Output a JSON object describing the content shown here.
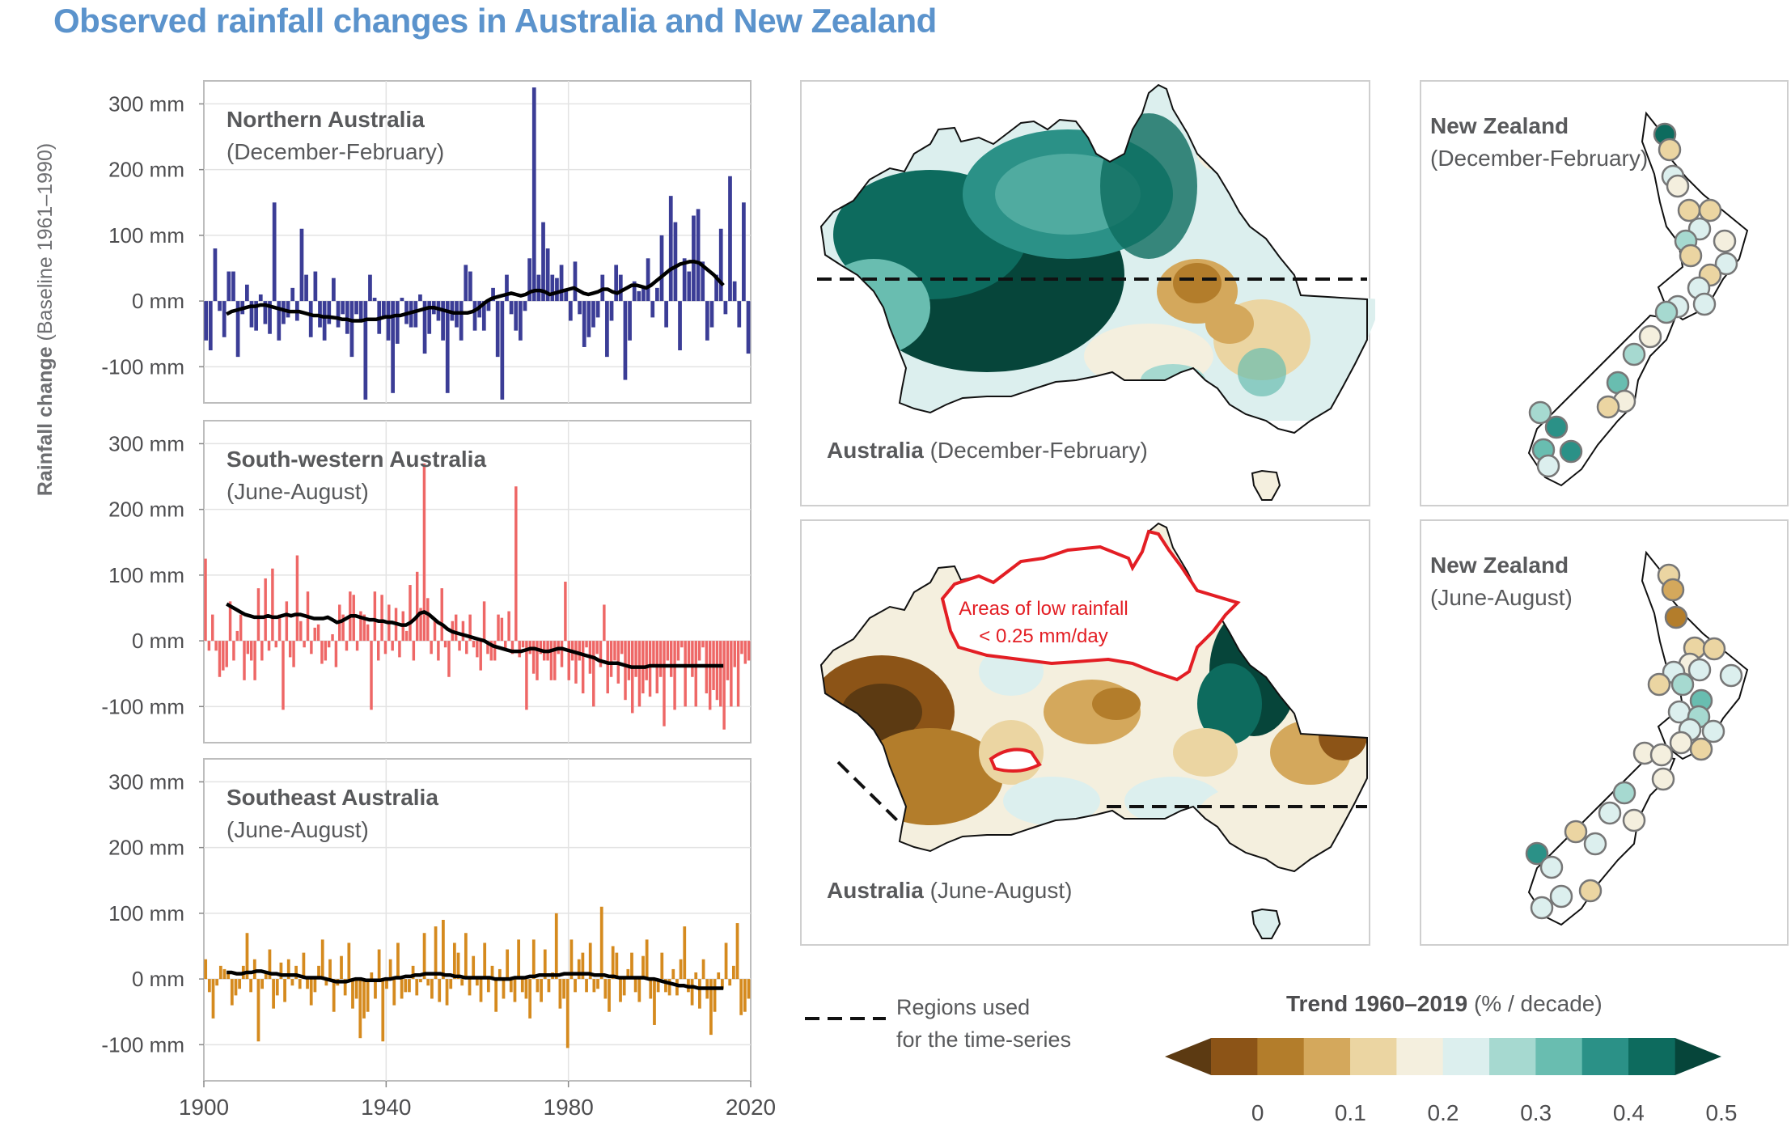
{
  "title": "Observed rainfall changes in Australia and New Zealand",
  "ylabel_bold": "Rainfall change",
  "ylabel_rest": " (Baseline 1961–1990)",
  "colors": {
    "northern": "#3b3d96",
    "southwestern": "#ee6766",
    "southeast": "#d58a1e",
    "smooth": "#000000",
    "title": "#5b93cc",
    "low_rain_outline": "#e31e24"
  },
  "panels": [
    {
      "name": "Northern Australia",
      "season": "(December-February)"
    },
    {
      "name": "South-western Australia",
      "season": "(June-August)"
    },
    {
      "name": "Southeast Australia",
      "season": "(June-August)"
    }
  ],
  "ytick_labels": [
    "300 mm",
    "200 mm",
    "100 mm",
    "0 mm",
    "-100 mm"
  ],
  "xtick_labels": [
    "1900",
    "1940",
    "1980",
    "2020"
  ],
  "chart_data": [
    {
      "type": "bar",
      "title": "Northern Australia (December-February)",
      "ylim": [
        -155,
        335
      ],
      "xlim": [
        1900,
        2020
      ],
      "grid": true,
      "x_start": 1900,
      "values": [
        -60,
        -75,
        80,
        -15,
        -55,
        45,
        45,
        -85,
        -20,
        25,
        -40,
        -45,
        10,
        -35,
        -50,
        150,
        -60,
        -35,
        -25,
        20,
        -30,
        110,
        40,
        -55,
        45,
        -40,
        -60,
        -35,
        35,
        -40,
        -20,
        -50,
        -85,
        -20,
        -30,
        -150,
        40,
        5,
        -50,
        -25,
        -60,
        -140,
        -65,
        5,
        -35,
        -40,
        -40,
        10,
        -80,
        -50,
        -20,
        -30,
        -60,
        -140,
        -30,
        -40,
        -60,
        55,
        45,
        -45,
        -25,
        -45,
        -15,
        20,
        -85,
        -150,
        40,
        -20,
        -45,
        -60,
        -15,
        65,
        325,
        40,
        120,
        80,
        40,
        35,
        55,
        15,
        -30,
        60,
        -20,
        -70,
        -55,
        -40,
        -25,
        40,
        -85,
        -30,
        55,
        40,
        -120,
        -60,
        30,
        15,
        20,
        65,
        -25,
        20,
        100,
        -40,
        160,
        120,
        -75,
        65,
        45,
        130,
        140,
        60,
        -60,
        -40,
        40,
        110,
        -20,
        190,
        30,
        -40,
        150,
        -80
      ],
      "smooth_start": 1905,
      "smooth": [
        -20,
        -16,
        -14,
        -12,
        -10,
        -8,
        -8,
        -6,
        -6,
        -8,
        -10,
        -12,
        -14,
        -16,
        -16,
        -16,
        -18,
        -20,
        -22,
        -22,
        -24,
        -24,
        -25,
        -26,
        -28,
        -28,
        -30,
        -30,
        -30,
        -28,
        -28,
        -28,
        -26,
        -24,
        -24,
        -22,
        -22,
        -20,
        -18,
        -16,
        -14,
        -12,
        -10,
        -10,
        -12,
        -14,
        -16,
        -18,
        -18,
        -18,
        -18,
        -16,
        -12,
        -6,
        0,
        4,
        6,
        8,
        10,
        12,
        10,
        8,
        10,
        14,
        16,
        16,
        14,
        10,
        12,
        14,
        16,
        18,
        20,
        16,
        12,
        10,
        12,
        14,
        18,
        18,
        14,
        12,
        16,
        20,
        24,
        24,
        22,
        20,
        24,
        30,
        36,
        42,
        48,
        52,
        56,
        58,
        60,
        60,
        58,
        52,
        46,
        40,
        32,
        24
      ],
      "colorKey": "northern"
    },
    {
      "type": "bar",
      "title": "South-western Australia (June-August)",
      "ylim": [
        -155,
        335
      ],
      "xlim": [
        1900,
        2020
      ],
      "grid": true,
      "x_start": 1900,
      "values": [
        125,
        -15,
        40,
        -15,
        -55,
        -45,
        -40,
        60,
        -30,
        15,
        40,
        -60,
        -20,
        -30,
        -60,
        80,
        -30,
        95,
        -15,
        110,
        -10,
        40,
        -105,
        60,
        -25,
        -40,
        130,
        30,
        -10,
        75,
        -20,
        20,
        25,
        -35,
        -30,
        -10,
        10,
        -40,
        55,
        40,
        -15,
        75,
        70,
        -15,
        45,
        40,
        25,
        -105,
        75,
        -30,
        70,
        -20,
        55,
        -15,
        50,
        -25,
        45,
        15,
        85,
        -30,
        105,
        50,
        270,
        65,
        -20,
        30,
        -30,
        80,
        -10,
        -55,
        30,
        40,
        -15,
        30,
        -20,
        40,
        -10,
        -25,
        -45,
        60,
        -20,
        -30,
        -30,
        40,
        35,
        -15,
        45,
        -20,
        235,
        -25,
        -10,
        -105,
        -20,
        -50,
        -60,
        -20,
        -30,
        -30,
        -60,
        -60,
        -20,
        -40,
        90,
        -60,
        -30,
        -65,
        -30,
        -80,
        -10,
        -50,
        -100,
        -20,
        -40,
        55,
        -80,
        -55,
        -30,
        -65,
        -20,
        -90,
        -60,
        -110,
        -55,
        -100,
        -80,
        -60,
        -85,
        -40,
        -80,
        -55,
        -130,
        -30,
        -55,
        -105,
        -30,
        -10,
        -100,
        -35,
        -55,
        -100,
        -30,
        -10,
        -80,
        -105,
        -75,
        -90,
        -100,
        -135,
        -60,
        -100,
        -40,
        -100,
        -20,
        -35,
        -30
      ],
      "smooth_start": 1905,
      "smooth": [
        56,
        52,
        48,
        44,
        40,
        38,
        36,
        36,
        36,
        38,
        36,
        36,
        38,
        40,
        38,
        40,
        40,
        38,
        36,
        34,
        34,
        34,
        36,
        32,
        28,
        30,
        34,
        38,
        38,
        36,
        34,
        32,
        32,
        30,
        30,
        28,
        28,
        26,
        24,
        24,
        28,
        34,
        42,
        44,
        40,
        34,
        28,
        24,
        18,
        14,
        12,
        10,
        8,
        6,
        4,
        2,
        0,
        -4,
        -8,
        -10,
        -12,
        -14,
        -16,
        -16,
        -16,
        -14,
        -12,
        -12,
        -14,
        -16,
        -16,
        -14,
        -12,
        -12,
        -14,
        -16,
        -18,
        -20,
        -22,
        -24,
        -26,
        -30,
        -32,
        -34,
        -34,
        -34,
        -36,
        -38,
        -40,
        -40,
        -40,
        -40,
        -38,
        -38,
        -38,
        -38,
        -38,
        -38,
        -38,
        -38,
        -38,
        -38,
        -38,
        -38,
        -38,
        -38,
        -38,
        -38,
        -38
      ],
      "colorKey": "southwestern"
    },
    {
      "type": "bar",
      "title": "Southeast Australia (June-August)",
      "ylim": [
        -155,
        335
      ],
      "xlim": [
        1900,
        2020
      ],
      "grid": true,
      "x_start": 1900,
      "values": [
        30,
        -20,
        -60,
        -10,
        20,
        15,
        10,
        -40,
        -25,
        -15,
        20,
        70,
        -20,
        30,
        -95,
        -15,
        10,
        45,
        -45,
        -25,
        25,
        -35,
        30,
        -10,
        20,
        -15,
        40,
        -15,
        -40,
        -20,
        20,
        60,
        -10,
        30,
        -50,
        -10,
        35,
        -25,
        55,
        -45,
        -30,
        -90,
        -60,
        -50,
        10,
        -30,
        45,
        -95,
        -15,
        30,
        -40,
        55,
        -30,
        -20,
        -20,
        20,
        -25,
        -5,
        70,
        -10,
        -30,
        80,
        -35,
        90,
        -40,
        -15,
        55,
        40,
        -10,
        70,
        -25,
        35,
        -10,
        -35,
        55,
        -20,
        20,
        -50,
        15,
        -30,
        45,
        -20,
        -35,
        60,
        -20,
        -30,
        -60,
        60,
        -20,
        -35,
        45,
        -20,
        10,
        100,
        -45,
        -30,
        -105,
        60,
        -20,
        30,
        40,
        -20,
        55,
        -20,
        -15,
        110,
        -30,
        -50,
        50,
        40,
        -35,
        -25,
        15,
        40,
        -20,
        -35,
        35,
        60,
        -30,
        -70,
        -20,
        40,
        -20,
        -25,
        15,
        -25,
        30,
        80,
        -20,
        -40,
        10,
        -45,
        30,
        -30,
        -85,
        -50,
        10,
        -15,
        55,
        -10,
        20,
        85,
        -55,
        -50,
        -30
      ],
      "smooth_start": 1905,
      "smooth": [
        10,
        10,
        8,
        8,
        10,
        10,
        12,
        12,
        10,
        8,
        8,
        6,
        6,
        6,
        6,
        4,
        2,
        2,
        2,
        2,
        0,
        -2,
        -4,
        -4,
        -4,
        -2,
        0,
        0,
        -2,
        -2,
        -2,
        -2,
        0,
        0,
        2,
        2,
        4,
        4,
        6,
        6,
        8,
        8,
        8,
        8,
        6,
        6,
        4,
        4,
        2,
        2,
        2,
        2,
        2,
        2,
        0,
        0,
        0,
        0,
        2,
        2,
        2,
        4,
        4,
        6,
        6,
        6,
        6,
        6,
        8,
        8,
        8,
        8,
        8,
        8,
        6,
        6,
        6,
        4,
        4,
        2,
        2,
        2,
        2,
        2,
        2,
        0,
        0,
        -2,
        -4,
        -6,
        -8,
        -10,
        -10,
        -12,
        -12,
        -14,
        -14,
        -14,
        -14,
        -14,
        -14
      ],
      "colorKey": "southeast"
    }
  ],
  "maps": {
    "aus_djf_label_bold": "Australia",
    "aus_djf_label_rest": " (December-February)",
    "aus_jja_label_bold": "Australia",
    "aus_jja_label_rest": " (June-August)",
    "nz_djf_label_bold": "New Zealand",
    "nz_djf_label_rest": "(December-February)",
    "nz_jja_label_bold": "New Zealand",
    "nz_jja_label_rest": "(June-August)",
    "low_rain_line1": "Areas of low rainfall",
    "low_rain_line2": "< 0.25 mm/day"
  },
  "legend": {
    "dash_line1": "Regions used",
    "dash_line2": "for the time-series"
  },
  "colorbar": {
    "title_bold": "Trend 1960–2019",
    "title_rest": " (% / decade)",
    "ticks": [
      "0",
      "0.1",
      "0.2",
      "0.3",
      "0.4",
      "0.5"
    ],
    "colors": [
      "#5c3a12",
      "#8c5417",
      "#b37d2b",
      "#d4a85c",
      "#ebd5a2",
      "#f4efde",
      "#dcefee",
      "#a6d9d0",
      "#69bdb0",
      "#2b9187",
      "#0d6b5e",
      "#06453a"
    ]
  }
}
